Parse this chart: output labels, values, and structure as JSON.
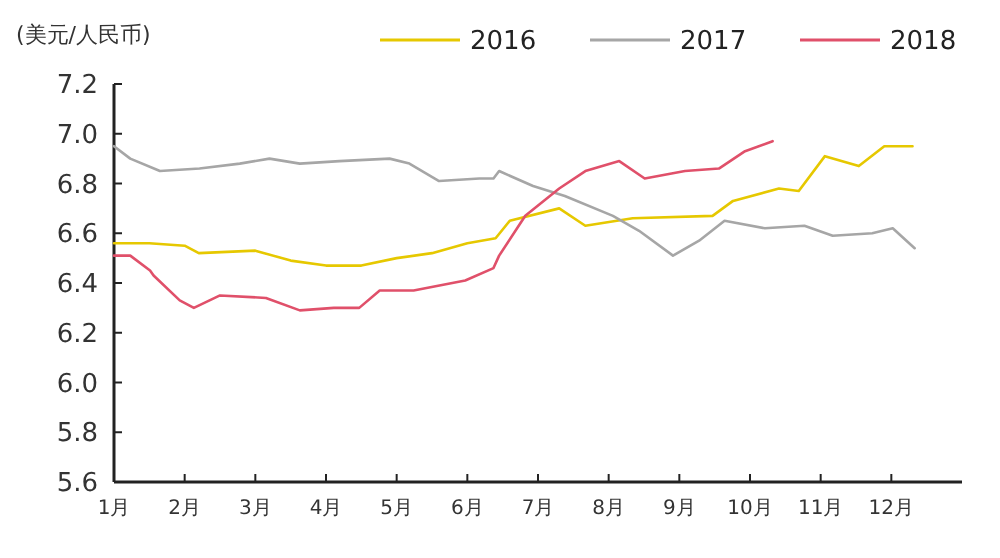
{
  "chart_data": {
    "type": "line",
    "ylabel": "(美元/人民币)",
    "legend": "top",
    "grid": false,
    "marker": "none",
    "line_style": "solid",
    "xlim": [
      1,
      13
    ],
    "ylim": [
      5.6,
      7.2
    ],
    "xticks": [
      {
        "value": 1,
        "label": "1月"
      },
      {
        "value": 2,
        "label": "2月"
      },
      {
        "value": 3,
        "label": "3月"
      },
      {
        "value": 4,
        "label": "4月"
      },
      {
        "value": 5,
        "label": "5月"
      },
      {
        "value": 6,
        "label": "6月"
      },
      {
        "value": 7,
        "label": "7月"
      },
      {
        "value": 8,
        "label": "8月"
      },
      {
        "value": 9,
        "label": "9月"
      },
      {
        "value": 10,
        "label": "10月"
      },
      {
        "value": 11,
        "label": "11月"
      },
      {
        "value": 12,
        "label": "12月"
      }
    ],
    "yticks": [
      {
        "value": 5.6,
        "label": "5.6"
      },
      {
        "value": 5.8,
        "label": "5.8"
      },
      {
        "value": 6.0,
        "label": "6.0"
      },
      {
        "value": 6.2,
        "label": "6.2"
      },
      {
        "value": 6.4,
        "label": "6.4"
      },
      {
        "value": 6.6,
        "label": "6.6"
      },
      {
        "value": 6.8,
        "label": "6.8"
      },
      {
        "value": 7.0,
        "label": "7.0"
      },
      {
        "value": 7.2,
        "label": "7.2"
      }
    ],
    "series": [
      {
        "name": "2016",
        "color": "#e6c800",
        "x": [
          1.0,
          1.5,
          2.0,
          2.2,
          3.0,
          3.5,
          4.0,
          4.5,
          5.0,
          5.5,
          6.0,
          6.4,
          6.6,
          7.3,
          7.67,
          8.34,
          9.47,
          9.76,
          10.41,
          10.69,
          11.06,
          11.54,
          11.9,
          12.3
        ],
        "values": [
          6.56,
          6.56,
          6.55,
          6.52,
          6.53,
          6.49,
          6.47,
          6.47,
          6.5,
          6.52,
          6.56,
          6.58,
          6.65,
          6.7,
          6.63,
          6.66,
          6.67,
          6.73,
          6.78,
          6.77,
          6.91,
          6.87,
          6.95,
          6.95
        ]
      },
      {
        "name": "2017",
        "color": "#a6a6a6",
        "x": [
          1.0,
          1.23,
          1.65,
          2.21,
          2.78,
          3.2,
          3.63,
          4.19,
          4.9,
          5.18,
          5.6,
          6.17,
          6.37,
          6.45,
          6.93,
          7.38,
          8.06,
          8.43,
          8.91,
          9.28,
          9.64,
          10.21,
          10.77,
          11.17,
          11.73,
          12.02,
          12.33
        ],
        "values": [
          6.95,
          6.9,
          6.85,
          6.86,
          6.88,
          6.9,
          6.88,
          6.89,
          6.9,
          6.88,
          6.81,
          6.82,
          6.82,
          6.85,
          6.79,
          6.75,
          6.67,
          6.61,
          6.51,
          6.57,
          6.65,
          6.62,
          6.63,
          6.59,
          6.6,
          6.62,
          6.54
        ]
      },
      {
        "name": "2018",
        "color": "#e0506a",
        "x": [
          1.0,
          1.23,
          1.51,
          1.56,
          1.93,
          2.13,
          2.5,
          3.15,
          3.63,
          4.11,
          4.47,
          4.76,
          5.24,
          5.97,
          6.37,
          6.45,
          6.82,
          7.3,
          7.67,
          8.15,
          8.51,
          9.08,
          9.56,
          9.93,
          10.32
        ],
        "values": [
          6.51,
          6.51,
          6.45,
          6.43,
          6.33,
          6.3,
          6.35,
          6.34,
          6.29,
          6.3,
          6.3,
          6.37,
          6.37,
          6.41,
          6.46,
          6.51,
          6.67,
          6.78,
          6.85,
          6.89,
          6.82,
          6.85,
          6.86,
          6.93,
          6.97
        ]
      }
    ]
  }
}
